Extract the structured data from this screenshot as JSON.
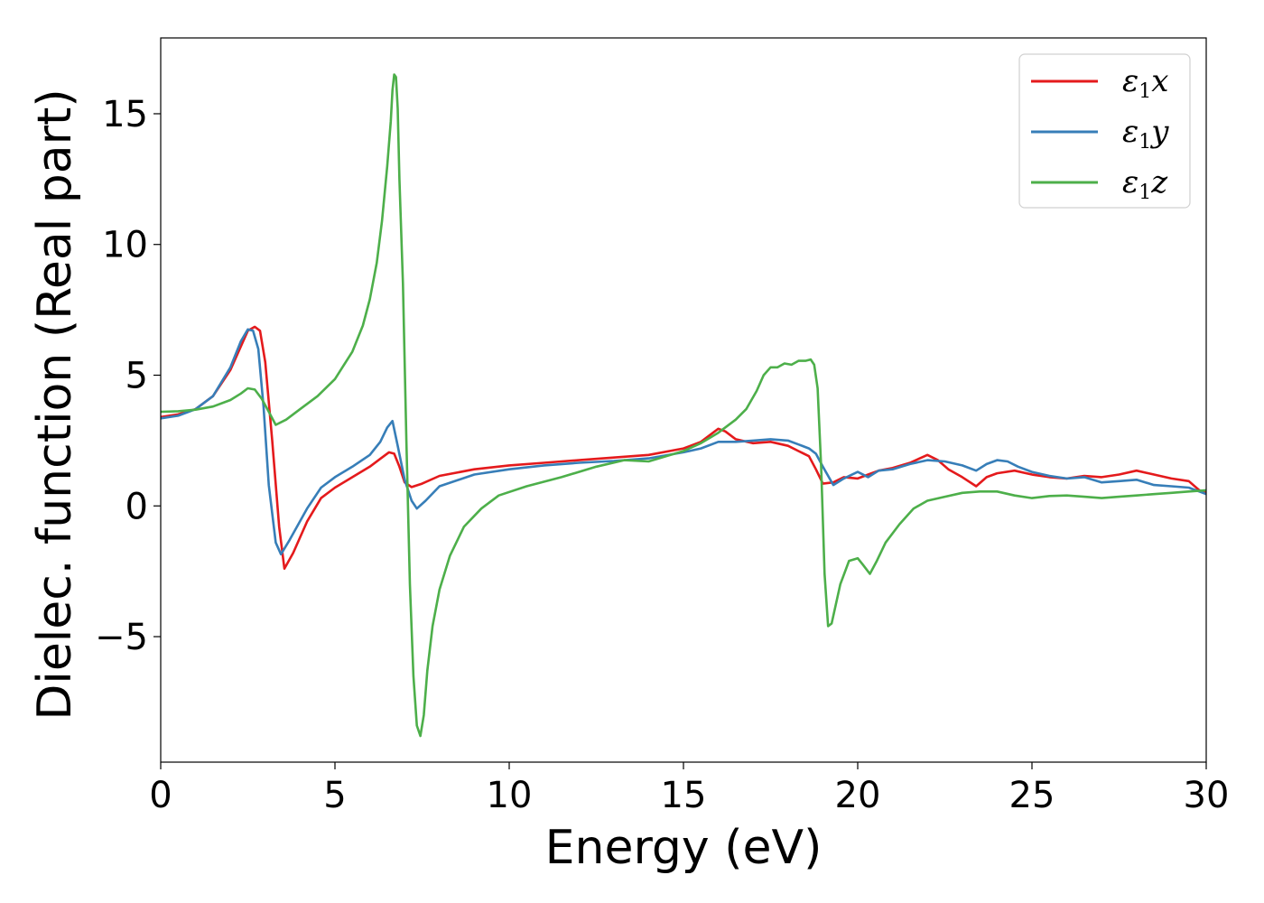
{
  "chart_data": {
    "type": "line",
    "title": "",
    "xlabel": "Energy (eV)",
    "ylabel": "Dielec. function (Real part)",
    "xlim": [
      0,
      30
    ],
    "ylim": [
      -9.8,
      17.9
    ],
    "xticks": [
      0,
      5,
      10,
      15,
      20,
      25,
      30
    ],
    "yticks": [
      -5,
      0,
      5,
      10,
      15
    ],
    "ytick_labels": [
      "−5",
      "0",
      "5",
      "10",
      "15"
    ],
    "grid": false,
    "legend_position": "top-right",
    "series": [
      {
        "name": "ε1x",
        "legend_main": "ε",
        "legend_sub": "1",
        "legend_var": "x",
        "color": "#e41a1c",
        "x": [
          0,
          0.5,
          1.0,
          1.5,
          2.0,
          2.3,
          2.5,
          2.7,
          2.85,
          3.0,
          3.2,
          3.4,
          3.55,
          3.8,
          4.2,
          4.6,
          5.0,
          5.5,
          6.0,
          6.3,
          6.55,
          6.7,
          6.85,
          7.0,
          7.2,
          7.5,
          8.0,
          9.0,
          10.0,
          11.0,
          12.0,
          13.0,
          14.0,
          15.0,
          15.5,
          15.8,
          16.0,
          16.2,
          16.5,
          17.0,
          17.5,
          18.0,
          18.3,
          18.6,
          18.8,
          19.0,
          19.3,
          19.6,
          20.0,
          20.3,
          20.6,
          21.0,
          21.5,
          22.0,
          22.3,
          22.6,
          23.0,
          23.4,
          23.7,
          24.0,
          24.5,
          25.0,
          25.5,
          26.0,
          26.5,
          27.0,
          27.5,
          28.0,
          28.5,
          29.0,
          29.5,
          29.8,
          30.0
        ],
        "y": [
          3.4,
          3.5,
          3.7,
          4.2,
          5.2,
          6.1,
          6.7,
          6.85,
          6.7,
          5.5,
          2.5,
          -0.8,
          -2.4,
          -1.8,
          -0.6,
          0.3,
          0.7,
          1.1,
          1.5,
          1.8,
          2.05,
          2.0,
          1.5,
          0.9,
          0.72,
          0.85,
          1.15,
          1.4,
          1.55,
          1.65,
          1.75,
          1.85,
          1.95,
          2.2,
          2.45,
          2.75,
          2.95,
          2.85,
          2.55,
          2.4,
          2.45,
          2.3,
          2.1,
          1.9,
          1.4,
          0.85,
          0.9,
          1.1,
          1.05,
          1.2,
          1.35,
          1.45,
          1.65,
          1.95,
          1.75,
          1.4,
          1.1,
          0.75,
          1.1,
          1.25,
          1.35,
          1.2,
          1.1,
          1.05,
          1.15,
          1.1,
          1.2,
          1.35,
          1.2,
          1.05,
          0.95,
          0.6,
          0.5
        ]
      },
      {
        "name": "ε1y",
        "legend_main": "ε",
        "legend_sub": "1",
        "legend_var": "y",
        "color": "#377eb8",
        "x": [
          0,
          0.5,
          1.0,
          1.5,
          2.0,
          2.3,
          2.5,
          2.65,
          2.8,
          2.95,
          3.1,
          3.3,
          3.45,
          3.7,
          4.2,
          4.6,
          5.0,
          5.5,
          6.0,
          6.3,
          6.5,
          6.65,
          6.8,
          7.0,
          7.2,
          7.35,
          7.6,
          8.0,
          9.0,
          10.0,
          11.0,
          12.0,
          13.0,
          14.0,
          15.0,
          15.5,
          16.0,
          16.5,
          17.0,
          17.5,
          18.0,
          18.3,
          18.6,
          18.8,
          19.0,
          19.3,
          19.6,
          20.0,
          20.3,
          20.6,
          21.0,
          21.5,
          22.0,
          22.5,
          23.0,
          23.4,
          23.7,
          24.0,
          24.3,
          24.6,
          25.0,
          25.5,
          26.0,
          26.5,
          27.0,
          27.5,
          28.0,
          28.5,
          29.0,
          29.5,
          29.8,
          30.0
        ],
        "y": [
          3.35,
          3.45,
          3.7,
          4.2,
          5.3,
          6.3,
          6.75,
          6.7,
          6.0,
          3.8,
          0.8,
          -1.4,
          -1.85,
          -1.3,
          -0.1,
          0.7,
          1.1,
          1.5,
          1.95,
          2.45,
          3.0,
          3.25,
          2.3,
          1.0,
          0.2,
          -0.1,
          0.2,
          0.75,
          1.2,
          1.4,
          1.55,
          1.65,
          1.72,
          1.82,
          2.05,
          2.2,
          2.45,
          2.45,
          2.5,
          2.55,
          2.5,
          2.35,
          2.2,
          2.0,
          1.5,
          0.8,
          1.05,
          1.3,
          1.1,
          1.35,
          1.4,
          1.6,
          1.75,
          1.7,
          1.55,
          1.35,
          1.6,
          1.75,
          1.7,
          1.5,
          1.3,
          1.15,
          1.05,
          1.1,
          0.9,
          0.95,
          1.0,
          0.8,
          0.75,
          0.7,
          0.55,
          0.45
        ]
      },
      {
        "name": "ε1z",
        "legend_main": "ε",
        "legend_sub": "1",
        "legend_var": "z",
        "color": "#4daf4a",
        "x": [
          0,
          0.5,
          1.0,
          1.5,
          2.0,
          2.3,
          2.5,
          2.7,
          2.9,
          3.1,
          3.3,
          3.6,
          4.0,
          4.5,
          5.0,
          5.5,
          5.8,
          6.0,
          6.2,
          6.35,
          6.5,
          6.6,
          6.65,
          6.7,
          6.75,
          6.8,
          6.85,
          6.95,
          7.05,
          7.15,
          7.25,
          7.35,
          7.45,
          7.55,
          7.65,
          7.8,
          8.0,
          8.3,
          8.7,
          9.2,
          9.7,
          10.5,
          11.5,
          12.5,
          13.3,
          14.0,
          15.0,
          15.5,
          16.0,
          16.5,
          16.8,
          17.1,
          17.3,
          17.5,
          17.7,
          17.9,
          18.1,
          18.3,
          18.5,
          18.65,
          18.75,
          18.85,
          18.95,
          19.05,
          19.15,
          19.25,
          19.5,
          19.75,
          20.0,
          20.15,
          20.35,
          20.55,
          20.8,
          21.2,
          21.6,
          22.0,
          22.5,
          23.0,
          23.5,
          24.0,
          24.5,
          25.0,
          25.5,
          26.0,
          26.5,
          27.0,
          27.5,
          28.0,
          28.5,
          29.0,
          29.5,
          30.0
        ],
        "y": [
          3.6,
          3.62,
          3.68,
          3.8,
          4.05,
          4.3,
          4.5,
          4.45,
          4.1,
          3.6,
          3.1,
          3.3,
          3.7,
          4.2,
          4.85,
          5.9,
          6.9,
          7.9,
          9.3,
          10.9,
          13.0,
          14.7,
          15.9,
          16.5,
          16.4,
          15.2,
          12.5,
          8.5,
          2.5,
          -3.0,
          -6.5,
          -8.4,
          -8.8,
          -8.0,
          -6.3,
          -4.6,
          -3.2,
          -1.9,
          -0.8,
          -0.1,
          0.4,
          0.75,
          1.1,
          1.5,
          1.75,
          1.7,
          2.1,
          2.4,
          2.8,
          3.3,
          3.7,
          4.4,
          5.0,
          5.3,
          5.3,
          5.45,
          5.4,
          5.55,
          5.55,
          5.6,
          5.4,
          4.5,
          1.5,
          -2.6,
          -4.6,
          -4.5,
          -3.0,
          -2.1,
          -2.0,
          -2.25,
          -2.6,
          -2.1,
          -1.4,
          -0.7,
          -0.1,
          0.2,
          0.35,
          0.5,
          0.55,
          0.55,
          0.4,
          0.3,
          0.38,
          0.4,
          0.35,
          0.3,
          0.35,
          0.4,
          0.45,
          0.5,
          0.55,
          0.6
        ]
      }
    ]
  }
}
